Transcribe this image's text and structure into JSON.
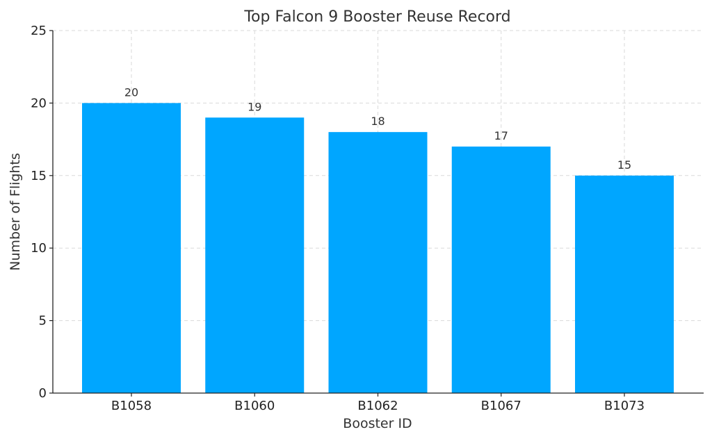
{
  "chart_data": {
    "type": "bar",
    "title": "Top Falcon 9 Booster Reuse Record",
    "xlabel": "Booster ID",
    "ylabel": "Number of Flights",
    "categories": [
      "B1058",
      "B1060",
      "B1062",
      "B1067",
      "B1073"
    ],
    "values": [
      20,
      19,
      18,
      17,
      15
    ],
    "data_labels": [
      "20",
      "19",
      "18",
      "17",
      "15"
    ],
    "ylim": [
      0,
      25
    ],
    "yticks": [
      0,
      5,
      10,
      15,
      20,
      25
    ],
    "ytick_labels": [
      "0",
      "5",
      "10",
      "15",
      "20",
      "25"
    ],
    "grid": true,
    "bar_color": "#00a6ff"
  }
}
